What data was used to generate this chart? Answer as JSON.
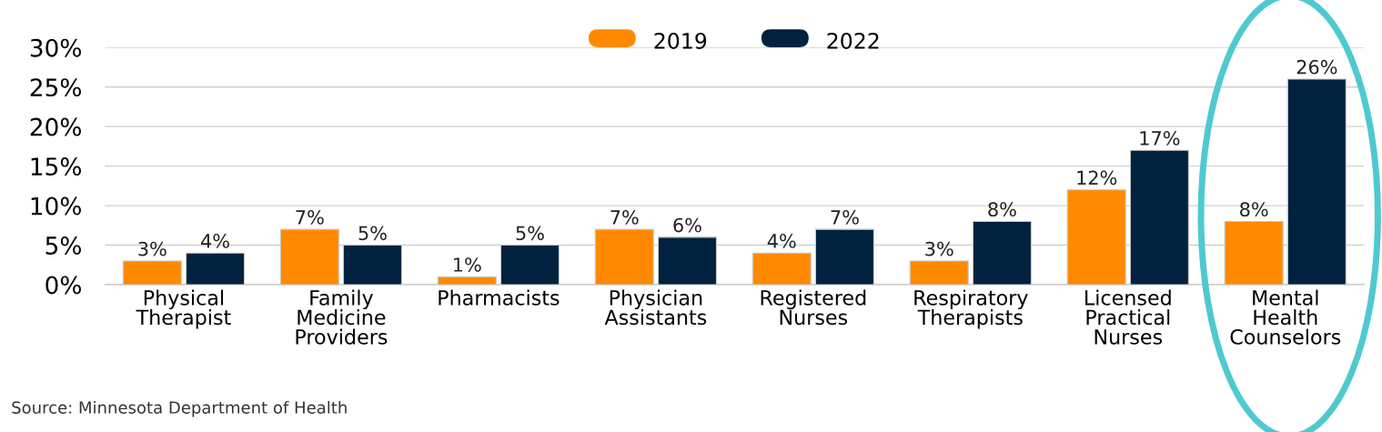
{
  "chart_data": {
    "type": "bar",
    "categories": [
      "Physical\nTherapist",
      "Family\nMedicine\nProviders",
      "Pharmacists",
      "Physician\nAssistants",
      "Registered\nNurses",
      "Respiratory\nTherapists",
      "Licensed\nPractical\nNurses",
      "Mental\nHealth\nCounselors"
    ],
    "series": [
      {
        "name": "2019",
        "color": "#ff8a00",
        "values": [
          3,
          7,
          1,
          7,
          4,
          3,
          12,
          8
        ],
        "value_labels": [
          "3%",
          "7%",
          "1%",
          "7%",
          "4%",
          "3%",
          "12%",
          "8%"
        ]
      },
      {
        "name": "2022",
        "color": "#00223f",
        "values": [
          4,
          5,
          5,
          6,
          7,
          8,
          17,
          26
        ],
        "value_labels": [
          "4%",
          "5%",
          "5%",
          "6%",
          "7%",
          "8%",
          "17%",
          "26%"
        ]
      }
    ],
    "ylim": [
      0,
      30
    ],
    "yticks": [
      {
        "value": 0,
        "label": "0%"
      },
      {
        "value": 5,
        "label": "5%"
      },
      {
        "value": 10,
        "label": "10%"
      },
      {
        "value": 15,
        "label": "15%"
      },
      {
        "value": 20,
        "label": "20%"
      },
      {
        "value": 25,
        "label": "25%"
      },
      {
        "value": 30,
        "label": "30%"
      }
    ],
    "grid": "y",
    "legend": "top",
    "annotations": [
      "Source: Minnesota Department of Health"
    ]
  }
}
